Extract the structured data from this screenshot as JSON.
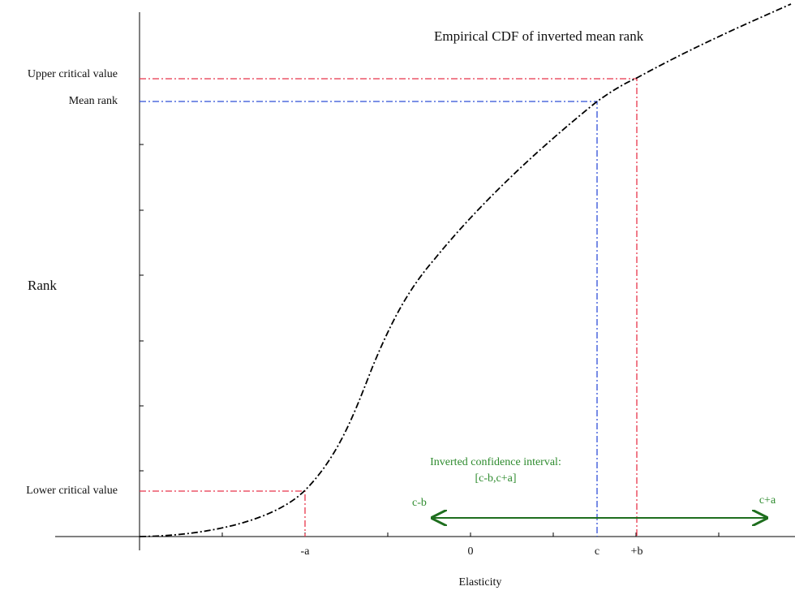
{
  "title": "Empirical CDF of inverted mean rank",
  "y_axis": {
    "label": "Rank",
    "upper": "Upper critical value",
    "mean": "Mean rank",
    "lower": "Lower critical value"
  },
  "x_axis": {
    "label": "Elasticity",
    "ticks": [
      "-a",
      "0",
      "c",
      "+b"
    ]
  },
  "interval": {
    "caption": "Inverted confidence interval:",
    "formula": "[c-b,c+a]",
    "left": "c-b",
    "right": "c+a"
  }
}
